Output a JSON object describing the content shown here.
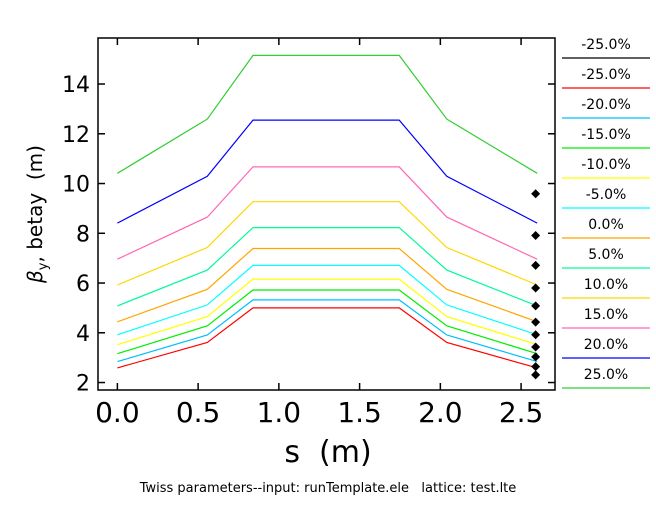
{
  "chart_data": {
    "type": "line",
    "xlabel": "s  (m)",
    "ylabel_symbol": "β",
    "ylabel_sub": "y",
    "ylabel_rest": ", betay  (m)",
    "footer": "Twiss parameters--input: runTemplate.ele   lattice: test.lte",
    "xlim": [
      -0.12,
      2.71
    ],
    "ylim": [
      1.7,
      15.85
    ],
    "xticks": [
      "0.0",
      "0.5",
      "1.0",
      "1.5",
      "2.0",
      "2.5"
    ],
    "yticks": [
      "2",
      "4",
      "6",
      "8",
      "10",
      "12",
      "14"
    ],
    "x": [
      0,
      0.557,
      0.84,
      1.745,
      2.04,
      2.6
    ],
    "series": [
      {
        "name": "-25.0%",
        "color": "#ff0000",
        "values": [
          2.59,
          3.61,
          5.0,
          5.0,
          3.61,
          2.59
        ]
      },
      {
        "name": "-20.0%",
        "color": "#00bfff",
        "values": [
          2.84,
          3.91,
          5.32,
          5.32,
          3.91,
          2.84
        ]
      },
      {
        "name": "-15.0%",
        "color": "#00ee00",
        "values": [
          3.16,
          4.28,
          5.72,
          5.72,
          4.28,
          3.16
        ]
      },
      {
        "name": "-10.0%",
        "color": "#ffff00",
        "values": [
          3.52,
          4.65,
          6.16,
          6.16,
          4.65,
          3.52
        ]
      },
      {
        "name": "-5.0%",
        "color": "#00ffff",
        "values": [
          3.92,
          5.12,
          6.71,
          6.71,
          5.12,
          3.92
        ]
      },
      {
        "name": "0.0%",
        "color": "#ffa500",
        "values": [
          4.44,
          5.75,
          7.39,
          7.39,
          5.75,
          4.44
        ]
      },
      {
        "name": "5.0%",
        "color": "#00fa9a",
        "values": [
          5.08,
          6.52,
          8.23,
          8.23,
          6.52,
          5.08
        ]
      },
      {
        "name": "10.0%",
        "color": "#ffd700",
        "values": [
          5.92,
          7.43,
          9.27,
          9.27,
          7.43,
          5.92
        ]
      },
      {
        "name": "15.0%",
        "color": "#ff69b4",
        "values": [
          6.96,
          8.65,
          10.67,
          10.67,
          8.65,
          6.96
        ]
      },
      {
        "name": "20.0%",
        "color": "#0000ff",
        "values": [
          8.41,
          10.29,
          12.55,
          12.55,
          10.29,
          8.41
        ]
      },
      {
        "name": "25.0%",
        "color": "#32cd32",
        "values": [
          10.41,
          12.59,
          15.15,
          15.15,
          12.59,
          10.41
        ]
      }
    ],
    "markers": {
      "name": "-25.0%",
      "color": "#000000",
      "x": 2.59,
      "values": [
        9.59,
        7.91,
        6.71,
        5.8,
        5.08,
        4.43,
        3.92,
        3.43,
        3.03,
        2.64,
        2.31
      ]
    },
    "legend_order": [
      "-25.0%",
      "-25.0%",
      "-20.0%",
      "-15.0%",
      "-10.0%",
      "-5.0%",
      "0.0%",
      "5.0%",
      "10.0%",
      "15.0%",
      "20.0%",
      "25.0%"
    ],
    "legend_colors": [
      "#000000",
      "#ff0000",
      "#00bfff",
      "#00ee00",
      "#ffff00",
      "#00ffff",
      "#ffa500",
      "#00fa9a",
      "#ffd700",
      "#ff69b4",
      "#0000ff",
      "#32cd32"
    ],
    "legend_placement": "right"
  }
}
